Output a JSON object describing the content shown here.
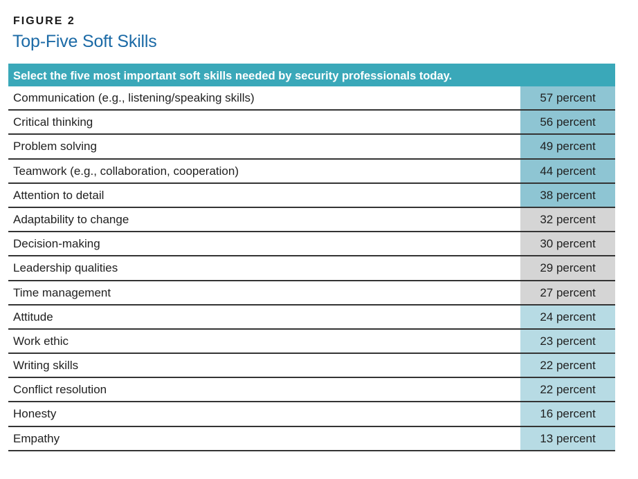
{
  "figure_label": "FIGURE 2",
  "figure_title": "Top-Five Soft Skills",
  "chart_data": {
    "type": "table",
    "title": "Top-Five Soft Skills",
    "question": "Select the five most important soft skills needed by security professionals today.",
    "value_unit": "percent",
    "rows": [
      {
        "skill": "Communication (e.g., listening/speaking skills)",
        "value": 57,
        "label": "57 percent"
      },
      {
        "skill": "Critical thinking",
        "value": 56,
        "label": "56 percent"
      },
      {
        "skill": "Problem solving",
        "value": 49,
        "label": "49 percent"
      },
      {
        "skill": "Teamwork (e.g., collaboration, cooperation)",
        "value": 44,
        "label": "44 percent"
      },
      {
        "skill": "Attention to detail",
        "value": 38,
        "label": "38 percent"
      },
      {
        "skill": "Adaptability to change",
        "value": 32,
        "label": "32 percent"
      },
      {
        "skill": "Decision-making",
        "value": 30,
        "label": "30 percent"
      },
      {
        "skill": "Leadership qualities",
        "value": 29,
        "label": "29 percent"
      },
      {
        "skill": "Time management",
        "value": 27,
        "label": "27 percent"
      },
      {
        "skill": "Attitude",
        "value": 24,
        "label": "24 percent"
      },
      {
        "skill": "Work ethic",
        "value": 23,
        "label": "23 percent"
      },
      {
        "skill": "Writing skills",
        "value": 22,
        "label": "22 percent"
      },
      {
        "skill": "Conflict resolution",
        "value": 22,
        "label": "22 percent"
      },
      {
        "skill": "Honesty",
        "value": 16,
        "label": "16 percent"
      },
      {
        "skill": "Empathy",
        "value": 13,
        "label": "13 percent"
      }
    ],
    "tier_colors": {
      "top": "#8ec5d3",
      "middle": "#d5d5d5",
      "low": "#b7dbe4"
    },
    "header_color": "#3aa8b9",
    "title_color": "#1b6aa6"
  }
}
